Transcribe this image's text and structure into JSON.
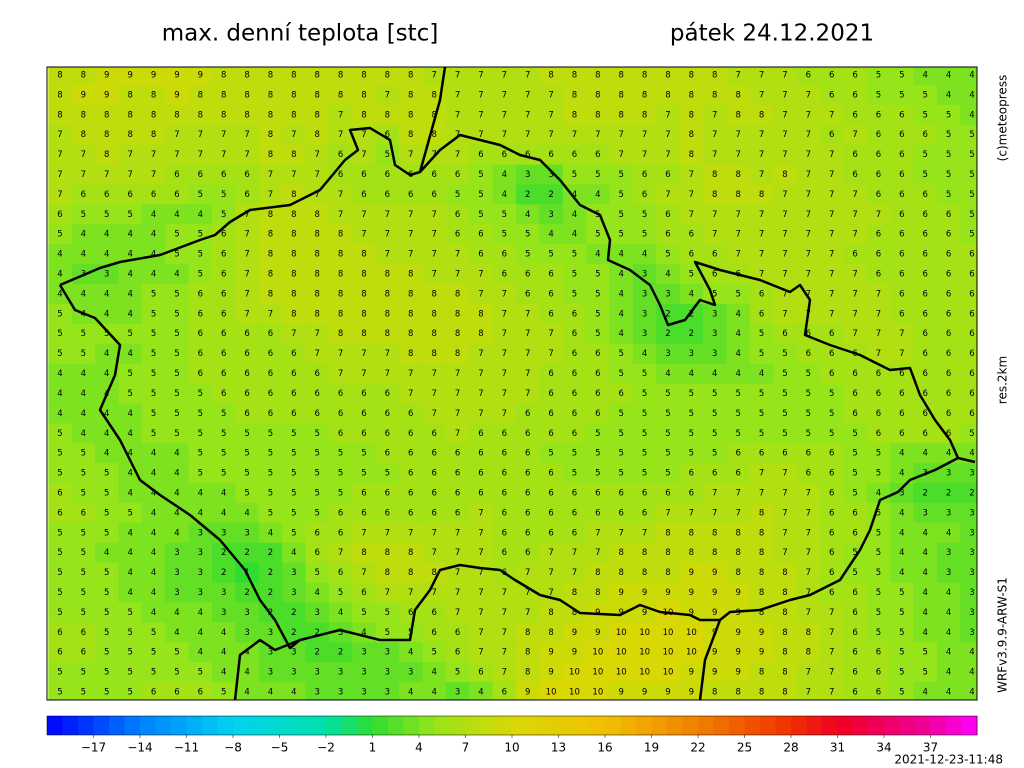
{
  "header": {
    "title": "max. denní teplota [stc]",
    "date": "pátek 24.12.2021"
  },
  "side_labels": {
    "copyright": "(c)meteopress",
    "resolution": "res.2km",
    "model": "WRFv3.9.9-ARW-S1"
  },
  "timestamp": "2021-12-23-11:48",
  "map": {
    "grid": [
      [
        8,
        8,
        9,
        9,
        9,
        9,
        9,
        8,
        8,
        8,
        8,
        8,
        8,
        8,
        8,
        8,
        7,
        7,
        7,
        7,
        7,
        8,
        8,
        8,
        8,
        8,
        8,
        8,
        8,
        7,
        7,
        7,
        6,
        6,
        6,
        5,
        5,
        4,
        4,
        4
      ],
      [
        8,
        9,
        9,
        8,
        8,
        9,
        8,
        8,
        8,
        8,
        8,
        8,
        8,
        8,
        7,
        8,
        8,
        7,
        7,
        7,
        7,
        7,
        8,
        8,
        8,
        8,
        8,
        8,
        8,
        8,
        7,
        7,
        7,
        6,
        6,
        5,
        5,
        5,
        4,
        4
      ],
      [
        8,
        8,
        8,
        8,
        8,
        8,
        8,
        8,
        8,
        8,
        8,
        8,
        7,
        8,
        8,
        8,
        8,
        7,
        7,
        7,
        7,
        7,
        8,
        8,
        8,
        8,
        7,
        8,
        7,
        8,
        8,
        7,
        7,
        7,
        6,
        6,
        6,
        5,
        5,
        4
      ],
      [
        7,
        8,
        8,
        8,
        8,
        7,
        7,
        7,
        7,
        8,
        7,
        8,
        7,
        7,
        6,
        8,
        8,
        7,
        7,
        7,
        7,
        7,
        7,
        7,
        7,
        7,
        7,
        8,
        7,
        7,
        7,
        7,
        7,
        6,
        7,
        6,
        6,
        6,
        5,
        5
      ],
      [
        7,
        7,
        8,
        7,
        7,
        7,
        7,
        7,
        7,
        8,
        8,
        7,
        6,
        7,
        5,
        7,
        7,
        7,
        6,
        6,
        6,
        6,
        6,
        6,
        7,
        7,
        7,
        8,
        7,
        7,
        7,
        7,
        7,
        7,
        6,
        6,
        6,
        5,
        5,
        5
      ],
      [
        7,
        7,
        7,
        7,
        7,
        6,
        6,
        6,
        6,
        7,
        7,
        7,
        6,
        6,
        6,
        6,
        6,
        6,
        5,
        4,
        3,
        3,
        5,
        5,
        5,
        6,
        6,
        7,
        8,
        8,
        7,
        8,
        7,
        7,
        6,
        6,
        6,
        5,
        5,
        5
      ],
      [
        7,
        6,
        6,
        6,
        6,
        6,
        5,
        5,
        6,
        7,
        8,
        7,
        7,
        6,
        6,
        6,
        6,
        5,
        5,
        4,
        2,
        2,
        4,
        4,
        5,
        6,
        7,
        7,
        8,
        8,
        8,
        7,
        7,
        7,
        7,
        6,
        6,
        6,
        5,
        5
      ],
      [
        6,
        5,
        5,
        5,
        4,
        4,
        4,
        5,
        7,
        8,
        8,
        8,
        7,
        7,
        7,
        7,
        7,
        6,
        5,
        5,
        4,
        3,
        4,
        5,
        5,
        5,
        6,
        7,
        7,
        7,
        7,
        7,
        7,
        7,
        7,
        7,
        6,
        6,
        6,
        5
      ],
      [
        5,
        4,
        4,
        4,
        4,
        5,
        5,
        6,
        7,
        8,
        8,
        8,
        8,
        7,
        7,
        7,
        7,
        6,
        6,
        5,
        5,
        4,
        4,
        5,
        5,
        5,
        6,
        6,
        7,
        7,
        7,
        7,
        7,
        7,
        7,
        6,
        6,
        6,
        6,
        5
      ],
      [
        4,
        4,
        4,
        4,
        4,
        5,
        5,
        6,
        7,
        8,
        8,
        8,
        8,
        8,
        7,
        7,
        7,
        7,
        6,
        6,
        5,
        5,
        5,
        4,
        4,
        4,
        5,
        6,
        6,
        7,
        7,
        7,
        7,
        7,
        6,
        6,
        6,
        6,
        6,
        6
      ],
      [
        4,
        3,
        3,
        4,
        4,
        4,
        5,
        6,
        7,
        8,
        8,
        8,
        8,
        8,
        8,
        8,
        7,
        7,
        7,
        6,
        6,
        6,
        5,
        5,
        4,
        3,
        4,
        5,
        6,
        6,
        7,
        7,
        7,
        7,
        7,
        6,
        6,
        6,
        6,
        6
      ],
      [
        4,
        4,
        4,
        4,
        5,
        5,
        6,
        6,
        7,
        8,
        8,
        8,
        8,
        8,
        8,
        8,
        8,
        8,
        7,
        7,
        6,
        6,
        5,
        5,
        4,
        3,
        3,
        4,
        5,
        5,
        6,
        7,
        7,
        7,
        7,
        7,
        6,
        6,
        6,
        6
      ],
      [
        5,
        4,
        4,
        4,
        5,
        5,
        6,
        6,
        7,
        7,
        8,
        8,
        8,
        8,
        8,
        8,
        8,
        8,
        8,
        7,
        7,
        6,
        6,
        5,
        4,
        3,
        2,
        2,
        3,
        4,
        6,
        7,
        7,
        7,
        7,
        7,
        6,
        6,
        6,
        6
      ],
      [
        5,
        5,
        5,
        5,
        5,
        5,
        6,
        6,
        6,
        6,
        7,
        7,
        8,
        8,
        8,
        8,
        8,
        8,
        8,
        7,
        7,
        7,
        6,
        5,
        4,
        3,
        2,
        2,
        3,
        4,
        5,
        6,
        6,
        6,
        7,
        7,
        7,
        6,
        6,
        6
      ],
      [
        5,
        5,
        4,
        4,
        5,
        5,
        6,
        6,
        6,
        6,
        6,
        7,
        7,
        7,
        7,
        8,
        8,
        8,
        7,
        7,
        7,
        7,
        6,
        6,
        5,
        4,
        3,
        3,
        3,
        4,
        5,
        5,
        6,
        6,
        6,
        7,
        7,
        6,
        6,
        6
      ],
      [
        4,
        4,
        4,
        5,
        5,
        5,
        6,
        6,
        6,
        6,
        6,
        6,
        7,
        7,
        7,
        7,
        7,
        7,
        7,
        7,
        7,
        6,
        6,
        6,
        5,
        5,
        4,
        4,
        4,
        4,
        4,
        5,
        5,
        6,
        6,
        6,
        6,
        6,
        6,
        6
      ],
      [
        4,
        4,
        4,
        5,
        5,
        5,
        5,
        6,
        6,
        6,
        6,
        6,
        6,
        6,
        6,
        7,
        7,
        7,
        7,
        7,
        7,
        6,
        6,
        6,
        6,
        5,
        5,
        5,
        5,
        5,
        5,
        5,
        5,
        5,
        6,
        6,
        6,
        6,
        6,
        6
      ],
      [
        4,
        4,
        4,
        4,
        5,
        5,
        5,
        5,
        6,
        6,
        6,
        6,
        6,
        6,
        6,
        6,
        7,
        7,
        7,
        7,
        6,
        6,
        6,
        6,
        5,
        5,
        5,
        5,
        5,
        5,
        5,
        5,
        5,
        5,
        6,
        6,
        6,
        6,
        6,
        6
      ],
      [
        5,
        4,
        4,
        4,
        5,
        5,
        5,
        5,
        5,
        5,
        5,
        5,
        6,
        6,
        6,
        6,
        6,
        7,
        6,
        6,
        6,
        6,
        6,
        5,
        5,
        5,
        5,
        5,
        5,
        5,
        5,
        5,
        5,
        5,
        5,
        6,
        6,
        6,
        6,
        5
      ],
      [
        5,
        5,
        4,
        4,
        4,
        4,
        5,
        5,
        5,
        5,
        5,
        5,
        5,
        5,
        6,
        6,
        6,
        6,
        6,
        6,
        6,
        5,
        5,
        5,
        5,
        5,
        5,
        5,
        5,
        6,
        6,
        6,
        6,
        6,
        5,
        5,
        4,
        4,
        4,
        4
      ],
      [
        5,
        5,
        5,
        4,
        4,
        4,
        5,
        5,
        5,
        5,
        5,
        5,
        5,
        5,
        5,
        6,
        6,
        6,
        6,
        6,
        6,
        6,
        5,
        5,
        5,
        5,
        5,
        6,
        6,
        6,
        7,
        7,
        6,
        6,
        5,
        5,
        4,
        3,
        3,
        3
      ],
      [
        6,
        5,
        5,
        4,
        4,
        4,
        4,
        4,
        5,
        5,
        5,
        5,
        5,
        6,
        6,
        6,
        6,
        6,
        6,
        6,
        6,
        6,
        6,
        6,
        6,
        6,
        6,
        6,
        7,
        7,
        7,
        7,
        7,
        6,
        5,
        4,
        3,
        2,
        2,
        2
      ],
      [
        6,
        6,
        5,
        5,
        4,
        4,
        4,
        4,
        4,
        5,
        5,
        5,
        6,
        6,
        6,
        6,
        6,
        6,
        7,
        6,
        6,
        6,
        6,
        6,
        6,
        6,
        7,
        7,
        7,
        7,
        8,
        7,
        7,
        6,
        6,
        5,
        4,
        3,
        3,
        3
      ],
      [
        5,
        5,
        5,
        4,
        4,
        4,
        3,
        3,
        3,
        4,
        5,
        6,
        6,
        7,
        7,
        7,
        7,
        7,
        7,
        6,
        6,
        6,
        6,
        7,
        7,
        7,
        8,
        8,
        8,
        8,
        8,
        7,
        7,
        6,
        6,
        5,
        4,
        4,
        4,
        3
      ],
      [
        5,
        5,
        4,
        4,
        4,
        3,
        3,
        2,
        2,
        2,
        4,
        6,
        7,
        8,
        8,
        8,
        7,
        7,
        7,
        6,
        6,
        7,
        7,
        7,
        8,
        8,
        8,
        8,
        8,
        8,
        8,
        7,
        7,
        6,
        5,
        5,
        4,
        4,
        3,
        3
      ],
      [
        5,
        5,
        5,
        4,
        4,
        3,
        3,
        2,
        1,
        2,
        3,
        5,
        6,
        7,
        8,
        8,
        8,
        7,
        7,
        6,
        7,
        7,
        7,
        8,
        8,
        8,
        8,
        9,
        9,
        8,
        8,
        8,
        7,
        6,
        5,
        5,
        4,
        4,
        3,
        3
      ],
      [
        5,
        5,
        5,
        4,
        4,
        3,
        3,
        3,
        2,
        2,
        3,
        4,
        5,
        6,
        7,
        7,
        7,
        7,
        7,
        7,
        7,
        7,
        8,
        8,
        9,
        9,
        9,
        9,
        9,
        9,
        8,
        8,
        7,
        6,
        6,
        5,
        5,
        4,
        4,
        3
      ],
      [
        5,
        5,
        5,
        5,
        4,
        4,
        4,
        3,
        3,
        2,
        2,
        3,
        4,
        5,
        5,
        6,
        6,
        7,
        7,
        7,
        7,
        8,
        8,
        9,
        9,
        9,
        10,
        9,
        9,
        9,
        8,
        8,
        7,
        7,
        6,
        5,
        5,
        4,
        4,
        3
      ],
      [
        6,
        6,
        5,
        5,
        5,
        4,
        4,
        4,
        3,
        3,
        2,
        2,
        3,
        4,
        5,
        5,
        6,
        6,
        7,
        7,
        8,
        8,
        9,
        9,
        10,
        10,
        10,
        10,
        9,
        9,
        9,
        8,
        8,
        7,
        6,
        5,
        5,
        4,
        4,
        3
      ],
      [
        6,
        6,
        5,
        5,
        5,
        5,
        4,
        4,
        4,
        3,
        3,
        2,
        2,
        3,
        3,
        4,
        5,
        6,
        7,
        7,
        8,
        9,
        9,
        10,
        10,
        10,
        10,
        10,
        9,
        9,
        9,
        8,
        8,
        7,
        6,
        6,
        5,
        5,
        4,
        4
      ],
      [
        5,
        5,
        5,
        5,
        5,
        5,
        5,
        4,
        4,
        3,
        3,
        3,
        3,
        3,
        3,
        3,
        4,
        5,
        6,
        7,
        8,
        9,
        10,
        10,
        10,
        10,
        10,
        9,
        9,
        9,
        8,
        8,
        7,
        7,
        6,
        6,
        5,
        5,
        4,
        4
      ],
      [
        5,
        5,
        5,
        5,
        6,
        6,
        6,
        5,
        4,
        4,
        4,
        3,
        3,
        3,
        3,
        4,
        4,
        3,
        4,
        6,
        9,
        10,
        10,
        10,
        9,
        9,
        9,
        9,
        8,
        8,
        8,
        8,
        7,
        7,
        6,
        6,
        5,
        4,
        4,
        4
      ]
    ]
  },
  "colorbar": {
    "range": [
      -20,
      40
    ],
    "ticks": [
      {
        "value": -17,
        "label": "−17"
      },
      {
        "value": -14,
        "label": "−14"
      },
      {
        "value": -11,
        "label": "−11"
      },
      {
        "value": -8,
        "label": "−8"
      },
      {
        "value": -5,
        "label": "−5"
      },
      {
        "value": -2,
        "label": "−2"
      },
      1,
      4,
      7,
      10,
      13,
      16,
      19,
      22,
      25,
      28,
      31,
      34,
      37
    ]
  }
}
